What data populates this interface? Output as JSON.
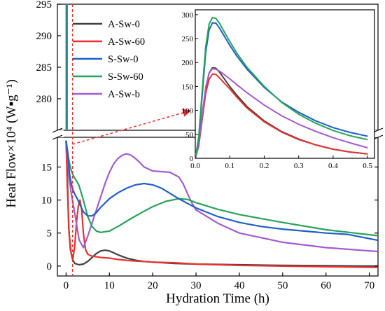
{
  "chart_data": {
    "type": "line",
    "xlabel": "Hydration Time (h)",
    "ylabel": "Heat Flow×10⁴ (W▪g⁻¹)",
    "x_range": [
      -2,
      72
    ],
    "x_ticks": [
      0,
      10,
      20,
      30,
      40,
      50,
      60,
      70
    ],
    "y_break": true,
    "y_lower_range": [
      -1.5,
      19.5
    ],
    "y_lower_ticks": [
      0,
      5,
      10,
      15
    ],
    "y_upper_range": [
      275,
      295
    ],
    "y_upper_ticks": [
      280,
      285,
      290,
      295
    ],
    "grid": false,
    "legend_position": "top-left",
    "marker_x": 1.5,
    "series": [
      {
        "name": "A-Sw-0",
        "color": "#404040",
        "x": [
          0,
          0.25,
          0.6,
          1.0,
          1.5,
          2.0,
          3.0,
          4.0,
          5.0,
          6.0,
          7.0,
          8.0,
          9.0,
          10.0,
          11.0,
          12.0,
          14.0,
          16.0,
          18.0,
          20.0,
          25.0,
          30.0,
          40.0,
          50.0,
          60.0,
          72.0
        ],
        "y": [
          19,
          15,
          6,
          2.5,
          1.0,
          0.4,
          0.2,
          0.3,
          0.7,
          1.3,
          1.9,
          2.3,
          2.4,
          2.3,
          2.0,
          1.7,
          1.2,
          0.9,
          0.7,
          0.6,
          0.4,
          0.3,
          0.2,
          0.1,
          0.05,
          0.0
        ]
      },
      {
        "name": "A-Sw-60",
        "color": "#e8322f",
        "x": [
          0,
          0.3,
          0.7,
          1.2,
          1.6,
          2.0,
          2.4,
          2.8,
          3.2,
          3.6,
          4.0,
          4.5,
          5.0,
          6.0,
          8.0,
          10.0,
          12.0,
          15.0,
          20.0,
          25.0,
          30.0,
          40.0,
          50.0,
          60.0,
          72.0
        ],
        "y": [
          19,
          12,
          5,
          1.8,
          1.2,
          3.0,
          6.5,
          9.0,
          10.0,
          8.5,
          5.0,
          2.5,
          1.8,
          1.5,
          1.3,
          1.2,
          1.0,
          0.8,
          0.6,
          0.5,
          0.3,
          0.1,
          0.0,
          -0.1,
          -0.2
        ]
      },
      {
        "name": "S-Sw-0",
        "color": "#1f5fc9",
        "x": [
          0,
          0.4,
          0.8,
          1.2,
          1.6,
          2.0,
          2.5,
          3.0,
          4.0,
          5.0,
          6.0,
          7.0,
          8.0,
          10.0,
          12.0,
          14.0,
          16.0,
          18.0,
          20.0,
          22.0,
          24.0,
          26.0,
          30.0,
          35.0,
          40.0,
          45.0,
          50.0,
          55.0,
          60.0,
          65.0,
          72.0
        ],
        "y": [
          19,
          17,
          14,
          12.5,
          11.5,
          10.9,
          10.3,
          9.6,
          8.2,
          7.6,
          7.6,
          8.1,
          8.9,
          10.2,
          11.1,
          11.8,
          12.3,
          12.5,
          12.3,
          11.8,
          11.0,
          10.2,
          8.8,
          7.5,
          6.6,
          6.0,
          5.6,
          5.3,
          5.0,
          4.8,
          3.9
        ]
      },
      {
        "name": "S-Sw-60",
        "color": "#27a35a",
        "x": [
          0,
          0.4,
          0.8,
          1.2,
          1.6,
          2.0,
          2.5,
          3.0,
          4.0,
          5.0,
          6.0,
          7.0,
          8.0,
          10.0,
          12.0,
          15.0,
          18.0,
          20.0,
          23.0,
          26.0,
          28.0,
          30.0,
          35.0,
          40.0,
          50.0,
          60.0,
          72.0
        ],
        "y": [
          19,
          17,
          15.5,
          14.5,
          13.8,
          13.3,
          12.8,
          12.2,
          10.0,
          7.5,
          6.0,
          5.3,
          5.1,
          5.3,
          6.0,
          7.2,
          8.3,
          9.0,
          9.8,
          10.2,
          10.1,
          9.6,
          8.6,
          7.8,
          6.6,
          5.5,
          4.6
        ]
      },
      {
        "name": "A-Sw-b",
        "color": "#a35bd1",
        "x": [
          0,
          0.4,
          0.8,
          1.2,
          1.6,
          2.0,
          2.5,
          3.0,
          4.0,
          5.0,
          6.0,
          7.0,
          8.0,
          9.0,
          10.0,
          11.0,
          12.0,
          13.0,
          14.0,
          15.0,
          16.0,
          17.0,
          18.0,
          20.0,
          22.0,
          24.0,
          26.0,
          27.0,
          28.0,
          29.0,
          30.0,
          35.0,
          40.0,
          50.0,
          60.0,
          72.0
        ],
        "y": [
          19,
          16,
          13,
          11,
          9.5,
          8.0,
          6.0,
          4.0,
          2.8,
          4.5,
          6.5,
          8.5,
          10.5,
          12.5,
          14.2,
          15.5,
          16.3,
          16.8,
          17.0,
          16.8,
          16.3,
          15.7,
          15.0,
          14.4,
          14.3,
          14.2,
          13.5,
          12.5,
          11.0,
          9.6,
          8.5,
          6.5,
          5.0,
          3.6,
          2.8,
          2.2
        ]
      }
    ],
    "inset": {
      "x_range": [
        0,
        0.52
      ],
      "x_ticks": [
        0.0,
        0.1,
        0.2,
        0.3,
        0.4,
        0.5
      ],
      "y_range": [
        0,
        310
      ],
      "y_ticks": [
        0,
        50,
        100,
        150,
        200,
        250,
        300
      ],
      "series": [
        {
          "name": "A-Sw-0",
          "color": "#404040",
          "x": [
            0,
            0.01,
            0.02,
            0.03,
            0.04,
            0.05,
            0.06,
            0.07,
            0.08,
            0.1,
            0.12,
            0.15,
            0.2,
            0.25,
            0.3,
            0.35,
            0.4,
            0.45,
            0.5
          ],
          "y": [
            0,
            30,
            90,
            145,
            178,
            189,
            188,
            180,
            170,
            150,
            132,
            108,
            78,
            56,
            40,
            28,
            19,
            13,
            9
          ]
        },
        {
          "name": "A-Sw-60",
          "color": "#e8322f",
          "x": [
            0,
            0.01,
            0.02,
            0.03,
            0.04,
            0.05,
            0.06,
            0.07,
            0.08,
            0.1,
            0.12,
            0.15,
            0.2,
            0.25,
            0.3,
            0.35,
            0.4,
            0.45,
            0.5
          ],
          "y": [
            0,
            25,
            80,
            135,
            165,
            176,
            175,
            168,
            160,
            145,
            128,
            105,
            76,
            55,
            39,
            28,
            19,
            13,
            9
          ]
        },
        {
          "name": "S-Sw-0",
          "color": "#1f5fc9",
          "x": [
            0,
            0.01,
            0.02,
            0.03,
            0.04,
            0.05,
            0.06,
            0.07,
            0.08,
            0.1,
            0.12,
            0.15,
            0.2,
            0.25,
            0.3,
            0.35,
            0.4,
            0.45,
            0.5
          ],
          "y": [
            0,
            40,
            130,
            220,
            268,
            283,
            282,
            272,
            260,
            236,
            214,
            186,
            148,
            118,
            96,
            78,
            64,
            54,
            46
          ]
        },
        {
          "name": "S-Sw-60",
          "color": "#27a35a",
          "x": [
            0,
            0.01,
            0.02,
            0.03,
            0.04,
            0.05,
            0.06,
            0.07,
            0.08,
            0.1,
            0.12,
            0.15,
            0.2,
            0.25,
            0.3,
            0.35,
            0.4,
            0.45,
            0.5
          ],
          "y": [
            0,
            45,
            140,
            232,
            280,
            294,
            292,
            282,
            269,
            244,
            220,
            190,
            150,
            117,
            92,
            73,
            58,
            47,
            39
          ]
        },
        {
          "name": "A-Sw-b",
          "color": "#a35bd1",
          "x": [
            0,
            0.01,
            0.02,
            0.03,
            0.04,
            0.05,
            0.06,
            0.07,
            0.08,
            0.1,
            0.12,
            0.15,
            0.2,
            0.25,
            0.3,
            0.35,
            0.4,
            0.45,
            0.5
          ],
          "y": [
            0,
            28,
            90,
            148,
            178,
            187,
            186,
            182,
            177,
            166,
            154,
            137,
            111,
            89,
            71,
            56,
            43,
            32,
            22
          ]
        }
      ]
    }
  }
}
